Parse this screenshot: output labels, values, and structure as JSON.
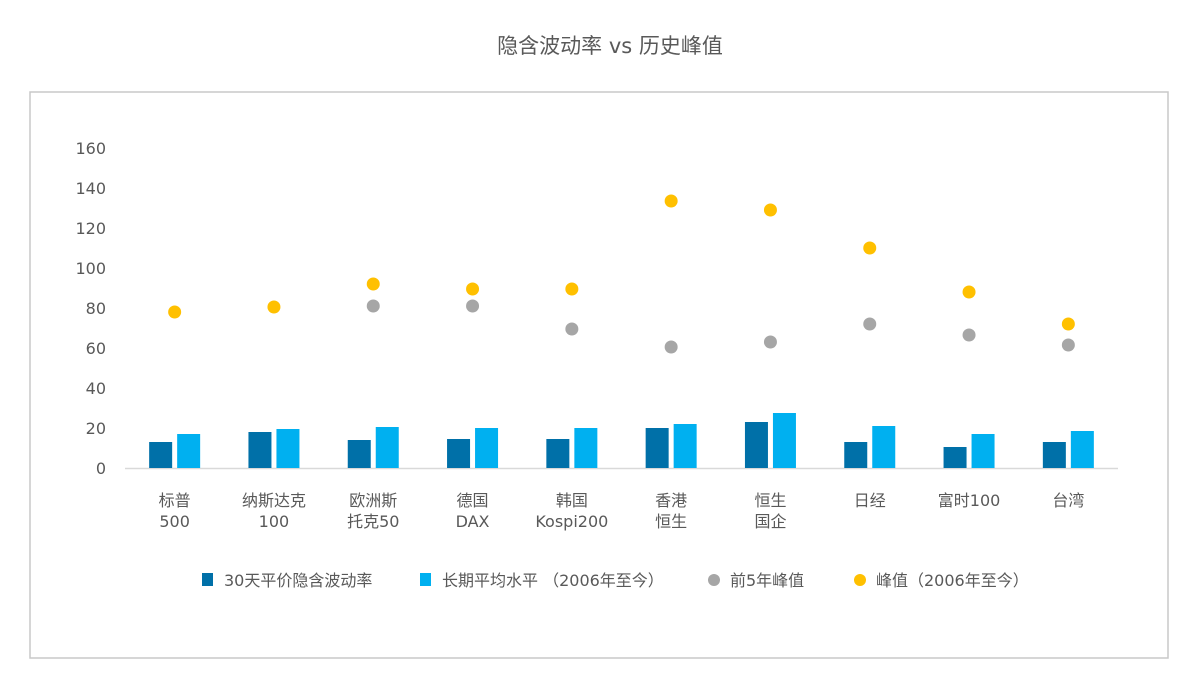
{
  "chart_data": {
    "type": "bar",
    "title": "隐含波动率 vs 历史峰值",
    "xlabel": "",
    "ylabel": "",
    "ylim": [
      0,
      160
    ],
    "yticks": [
      "0",
      "20",
      "40",
      "60",
      "80",
      "100",
      "120",
      "140",
      "160"
    ],
    "grid": false,
    "legend_position": "bottom",
    "categories": [
      [
        "标普",
        "500"
      ],
      [
        "纳斯达克",
        "100"
      ],
      [
        "欧洲斯",
        "托克50"
      ],
      [
        "德国",
        "DAX"
      ],
      [
        "韩国",
        "Kospi200"
      ],
      [
        "香港",
        "恒生"
      ],
      [
        "恒生",
        "国企"
      ],
      [
        "日经"
      ],
      [
        "富时100"
      ],
      [
        "台湾"
      ]
    ],
    "series": [
      {
        "name": "30天平价隐含波动率",
        "kind": "bar",
        "color": "#0070A8",
        "values": [
          13,
          18,
          14,
          14.5,
          14.5,
          20,
          23,
          13,
          10.5,
          13
        ]
      },
      {
        "name": "长期平均水平 （2006年至今）",
        "kind": "bar",
        "color": "#00B0F0",
        "values": [
          17,
          19.5,
          20.5,
          20,
          20,
          22,
          27.5,
          21,
          17,
          18.5
        ]
      },
      {
        "name": "前5年峰值",
        "kind": "scatter",
        "color": "#A6A6A6",
        "values": [
          null,
          null,
          81,
          81,
          69.5,
          60.5,
          63,
          72,
          66.5,
          61.5
        ]
      },
      {
        "name": "峰值（2006年至今）",
        "kind": "scatter",
        "color": "#FFC000",
        "values": [
          78,
          80.5,
          92,
          89.5,
          89.5,
          133.5,
          129,
          110,
          88,
          72
        ]
      }
    ]
  }
}
